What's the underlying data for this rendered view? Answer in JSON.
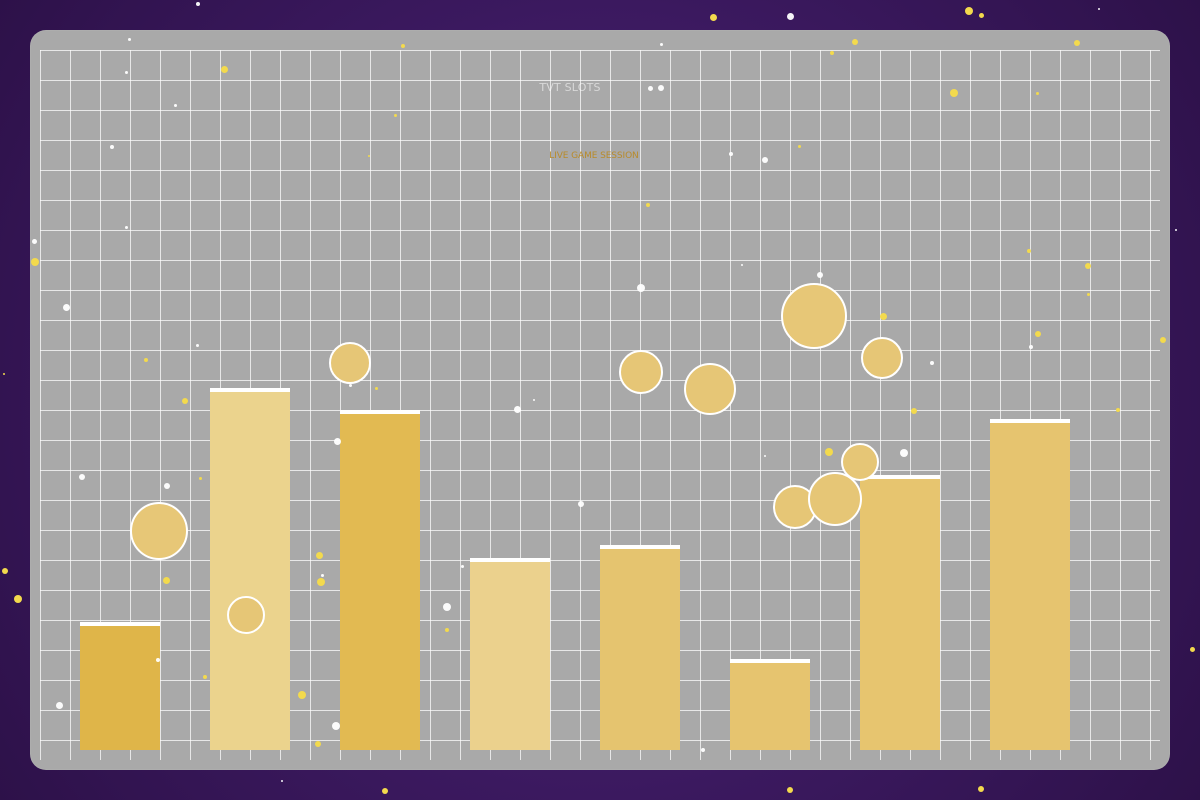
{
  "session": {
    "title": "TVT SLOTS",
    "subtitle": "LIVE GAME SESSION"
  },
  "towers": [
    {
      "name": "tower-1",
      "color": "#dfb549",
      "height": 128
    },
    {
      "name": "tower-2",
      "color": "#ebd38d",
      "height": 362
    },
    {
      "name": "tower-3",
      "color": "#e2ba52",
      "height": 340
    },
    {
      "name": "tower-4",
      "color": "#ebd18d",
      "height": 192
    },
    {
      "name": "tower-5",
      "color": "#e5c46f",
      "height": 205
    },
    {
      "name": "tower-6",
      "color": "#e6c46f",
      "height": 91
    },
    {
      "name": "tower-7",
      "color": "#e7c56f",
      "height": 275
    },
    {
      "name": "tower-8",
      "color": "#e6c46f",
      "height": 331
    }
  ],
  "orbs": [
    {
      "name": "coin-orb-1"
    },
    {
      "name": "coin-orb-2"
    },
    {
      "name": "coin-orb-3"
    },
    {
      "name": "coin-orb-4"
    },
    {
      "name": "coin-orb-5"
    },
    {
      "name": "coin-orb-6"
    },
    {
      "name": "coin-orb-7"
    },
    {
      "name": "coin-orb-8"
    },
    {
      "name": "coin-orb-9"
    },
    {
      "name": "coin-orb-10"
    }
  ]
}
